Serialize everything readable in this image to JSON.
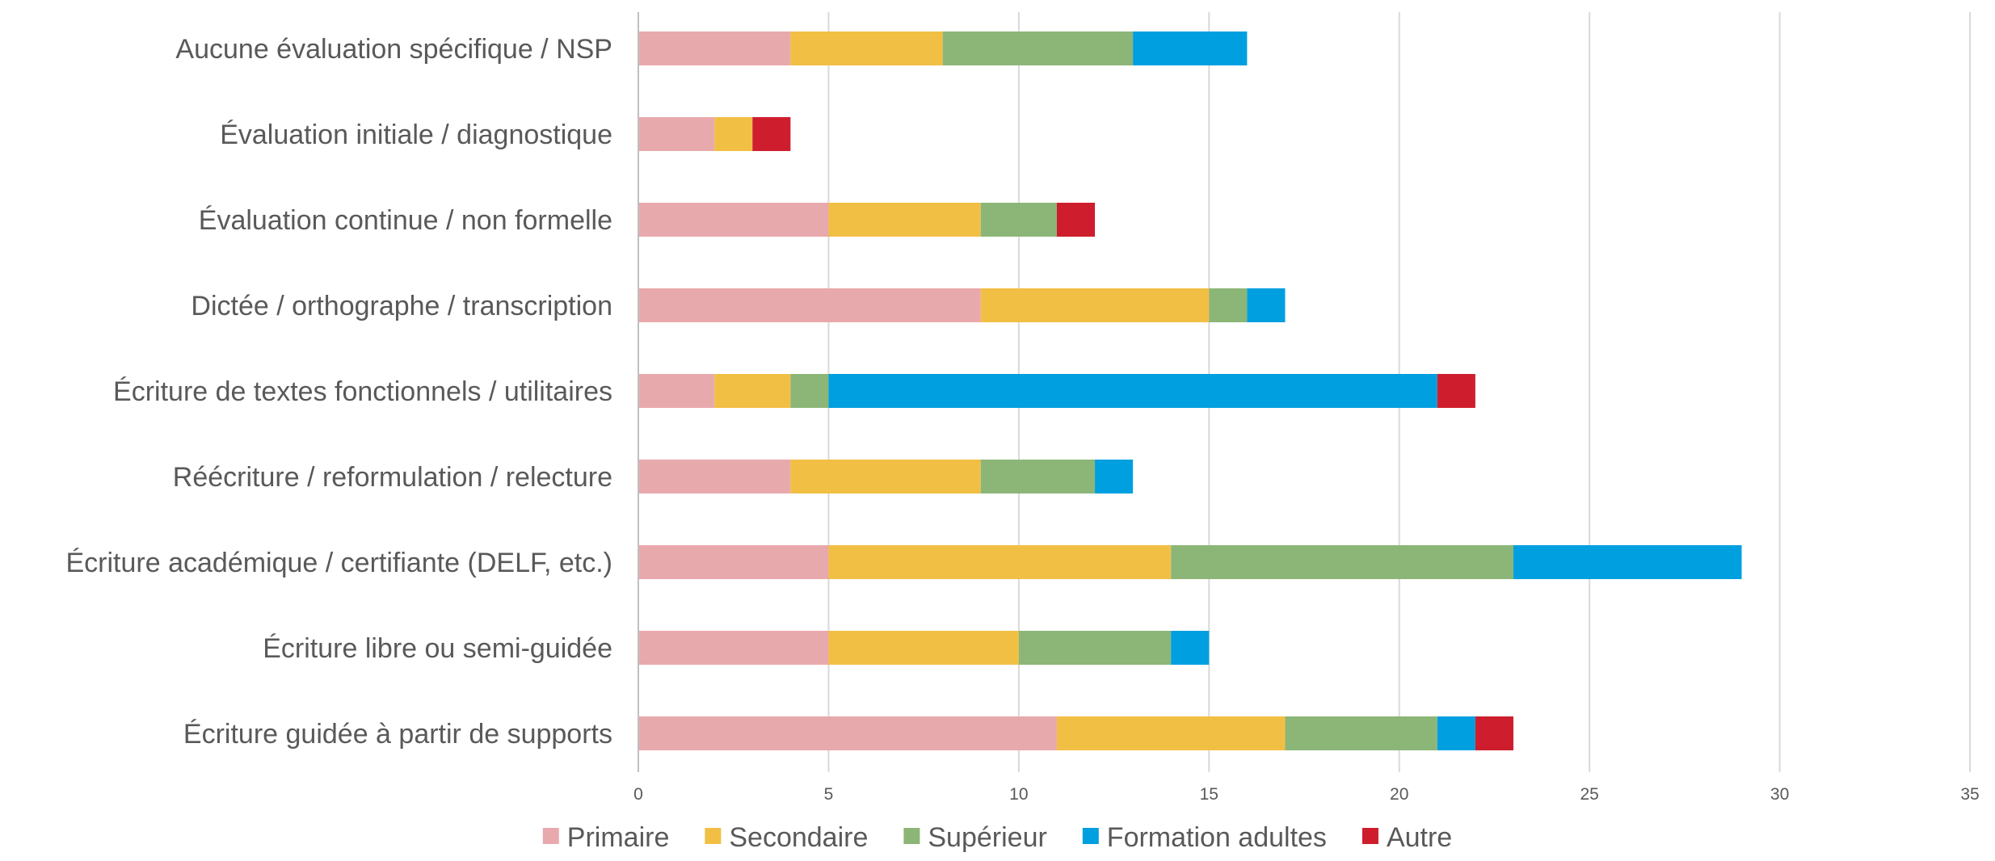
{
  "chart_data": {
    "type": "bar",
    "orientation": "horizontal",
    "stacked": true,
    "categories": [
      "Aucune évaluation spécifique / NSP",
      "Évaluation initiale / diagnostique",
      "Évaluation continue / non formelle",
      "Dictée / orthographe / transcription",
      "Écriture de textes fonctionnels / utilitaires",
      "Réécriture / reformulation / relecture",
      "Écriture académique / certifiante (DELF, etc.)",
      "Écriture libre ou semi-guidée",
      "Écriture guidée à partir de supports"
    ],
    "series": [
      {
        "name": "Primaire",
        "color": "#E8A9AD",
        "values": [
          4,
          2,
          5,
          9,
          2,
          4,
          5,
          5,
          11
        ]
      },
      {
        "name": "Secondaire",
        "color": "#F2BF45",
        "values": [
          4,
          1,
          4,
          6,
          2,
          5,
          9,
          5,
          6
        ]
      },
      {
        "name": "Supérieur",
        "color": "#8CB677",
        "values": [
          5,
          0,
          2,
          1,
          1,
          3,
          9,
          4,
          4
        ]
      },
      {
        "name": "Formation adultes",
        "color": "#009FE0",
        "values": [
          3,
          0,
          0,
          1,
          16,
          1,
          6,
          1,
          1
        ]
      },
      {
        "name": "Autre",
        "color": "#CE1E2D",
        "values": [
          0,
          1,
          1,
          0,
          1,
          0,
          0,
          0,
          1
        ]
      }
    ],
    "x_ticks": [
      "0",
      "5",
      "10",
      "15",
      "20",
      "25",
      "30",
      "35"
    ],
    "xlim": [
      0,
      35
    ],
    "grid": "vertical",
    "legend_position": "bottom",
    "title": "",
    "xlabel": "",
    "ylabel": ""
  }
}
